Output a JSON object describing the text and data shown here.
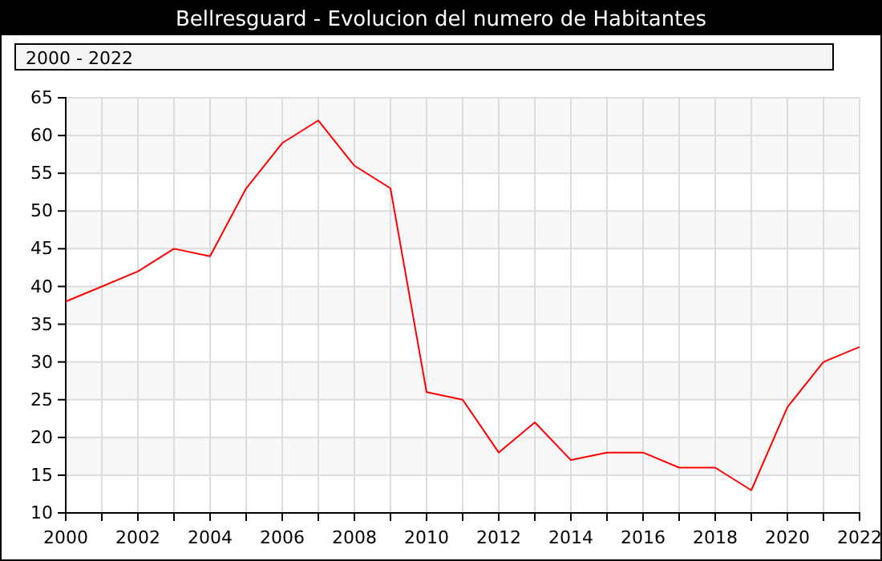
{
  "chart_data": {
    "type": "line",
    "title": "Bellresguard - Evolucion del numero de Habitantes",
    "subtitle": "2000 - 2022",
    "x": [
      2000,
      2001,
      2002,
      2003,
      2004,
      2005,
      2006,
      2007,
      2008,
      2009,
      2010,
      2011,
      2012,
      2013,
      2014,
      2015,
      2016,
      2017,
      2018,
      2019,
      2020,
      2021,
      2022
    ],
    "series": [
      {
        "color": "#ff0000",
        "values": [
          38,
          40,
          42,
          45,
          44,
          53,
          59,
          62,
          56,
          53,
          26,
          25,
          18,
          22,
          17,
          18,
          18,
          16,
          16,
          13,
          24,
          30,
          32
        ]
      }
    ],
    "xlim": [
      2000,
      2022
    ],
    "xticks": [
      2000,
      {
        "value": 2001,
        "label": null
      },
      2002,
      {
        "value": 2003,
        "label": null
      },
      2004,
      {
        "value": 2005,
        "label": null
      },
      2006,
      {
        "value": 2007,
        "label": null
      },
      2008,
      {
        "value": 2009,
        "label": null
      },
      2010,
      {
        "value": 2011,
        "label": null
      },
      2012,
      {
        "value": 2013,
        "label": null
      },
      2014,
      {
        "value": 2015,
        "label": null
      },
      2016,
      {
        "value": 2017,
        "label": null
      },
      2018,
      {
        "value": 2019,
        "label": null
      },
      2020,
      {
        "value": 2021,
        "label": null
      },
      2022
    ],
    "ylim": [
      10,
      65
    ],
    "yticks": [
      10,
      15,
      20,
      25,
      30,
      35,
      40,
      45,
      50,
      55,
      60,
      65
    ],
    "grid": true,
    "marker": "none",
    "line_style": "solid"
  }
}
